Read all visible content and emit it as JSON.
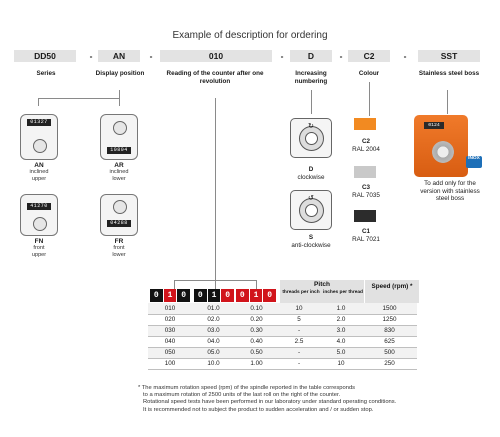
{
  "title": "Example of description for ordering",
  "code": {
    "series": "DD50",
    "display": "AN",
    "reading": "010",
    "numbering": "D",
    "colour": "C2",
    "boss": "SST",
    "dash": "-"
  },
  "labels": {
    "series": "Series",
    "display": "Display position",
    "reading": "Reading of the counter after one revolution",
    "numbering": "Increasing numbering",
    "colour": "Colour",
    "boss": "Stainless steel boss"
  },
  "displays": [
    {
      "code": "AN",
      "line1": "inclined",
      "line2": "upper",
      "window": "01327"
    },
    {
      "code": "AR",
      "line1": "inclined",
      "line2": "lower",
      "window": "10804"
    },
    {
      "code": "FN",
      "line1": "front",
      "line2": "upper",
      "window": "41270"
    },
    {
      "code": "FR",
      "line1": "front",
      "line2": "lower",
      "window": "04288"
    }
  ],
  "directions": [
    {
      "code": "D",
      "label": "clockwise"
    },
    {
      "code": "S",
      "label": "anti-clockwise"
    }
  ],
  "colours": [
    {
      "code": "C2",
      "ral": "RAL 2004",
      "hex": "#f28a21"
    },
    {
      "code": "C3",
      "ral": "RAL 7035",
      "hex": "#c9c9c9"
    },
    {
      "code": "C1",
      "ral": "RAL 7021",
      "hex": "#2c2c2c"
    }
  ],
  "sst": {
    "window": "0124",
    "badge": "INOX",
    "note": "To add only for the version with stainless steel boss"
  },
  "table": {
    "rev_digits": [
      [
        "0",
        "1",
        "0"
      ],
      [
        "0",
        "1",
        "0"
      ],
      [
        "0",
        "1",
        "0"
      ]
    ],
    "pitch_header": "Pitch",
    "thread_header": "threads per inch",
    "inches_header": "inches per thread",
    "speed_header": "Speed (rpm) *",
    "rows": [
      [
        "010",
        "01.0",
        "0.10",
        "10",
        "1.0",
        "1500"
      ],
      [
        "020",
        "02.0",
        "0.20",
        "5",
        "2.0",
        "1250"
      ],
      [
        "030",
        "03.0",
        "0.30",
        "-",
        "3.0",
        "830"
      ],
      [
        "040",
        "04.0",
        "0.40",
        "2.5",
        "4.0",
        "625"
      ],
      [
        "050",
        "05.0",
        "0.50",
        "-",
        "5.0",
        "500"
      ],
      [
        "100",
        "10.0",
        "1.00",
        "-",
        "10",
        "250"
      ]
    ]
  },
  "footnote": [
    "* The maximum rotation speed (rpm) of the spindle reported in the table corresponds",
    "to a maximum rotation of 2500 units of the last roll on the right of the counter.",
    "Rotational speed tests have been performed in our laboratory under standard operating conditions.",
    "It is recommended not to subject the product to sudden acceleration and / or sudden stop."
  ]
}
